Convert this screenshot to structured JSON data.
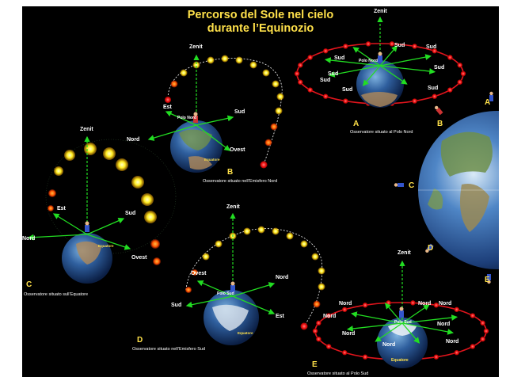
{
  "title": {
    "line1": "Percorso del Sole nel cielo",
    "line2": "durante l’Equinozio"
  },
  "colors": {
    "background": "#000000",
    "title": "#ffe14a",
    "arrow": "#22dd22",
    "orbit": "#e0141c",
    "sun": "#ffee22"
  },
  "panels": {
    "A": {
      "letter": "A",
      "caption": "Osservatore situato al Polo Nord",
      "zenith": "Zenit",
      "pole": "Polo Nord",
      "directions": [
        "Sud",
        "Sud",
        "Sud",
        "Sud",
        "Sud",
        "Sud",
        "Sud",
        "Sud"
      ]
    },
    "B": {
      "letter": "B",
      "caption": "Osservatore situato nell’Emisfero Nord",
      "zenith": "Zenit",
      "pole": "Polo Nord",
      "equator": "Equatore",
      "directions": {
        "east": "Est",
        "south": "Sud",
        "north": "Nord",
        "west": "Ovest"
      }
    },
    "C": {
      "letter": "C",
      "caption": "Osservatore situato sull’Equatore",
      "zenith": "Zenit",
      "equator": "Equatore",
      "directions": {
        "east": "Est",
        "south": "Sud",
        "north": "Nord",
        "west": "Ovest"
      }
    },
    "D": {
      "letter": "D",
      "caption": "Osservatore situato nell’Emisfero Sud",
      "zenith": "Zenit",
      "pole": "Polo Sud",
      "equator": "Equatore",
      "directions": {
        "west": "Ovest",
        "north": "Nord",
        "south": "Sud",
        "east": "Est"
      }
    },
    "E": {
      "letter": "E",
      "caption": "Osservatore situato al Polo Sud",
      "zenith": "Zenit",
      "pole": "Polo Sud",
      "equator": "Equatore",
      "directions": [
        "Nord",
        "Nord",
        "Nord",
        "Nord",
        "Nord",
        "Nord",
        "Nord",
        "Nord"
      ]
    }
  },
  "big_globe_markers": [
    "A",
    "B",
    "C",
    "D",
    "E"
  ]
}
